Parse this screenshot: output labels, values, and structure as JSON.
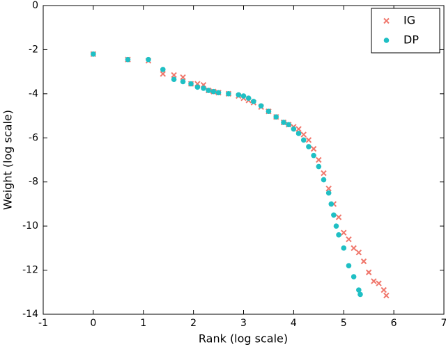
{
  "chart_data": {
    "type": "scatter",
    "xlabel": "Rank (log scale)",
    "ylabel": "Weight (log scale)",
    "xlim": [
      -1,
      7
    ],
    "ylim": [
      -14,
      0
    ],
    "xticks": [
      -1,
      0,
      1,
      2,
      3,
      4,
      5,
      6,
      7
    ],
    "yticks": [
      -14,
      -12,
      -10,
      -8,
      -6,
      -4,
      -2,
      0
    ],
    "legend": "upper right",
    "series": [
      {
        "name": "IG",
        "color": "#f0776c",
        "marker": "x",
        "x": [
          0,
          0.69,
          1.1,
          1.39,
          1.61,
          1.79,
          1.95,
          2.08,
          2.2,
          2.3,
          2.4,
          2.5,
          2.7,
          2.9,
          3.0,
          3.1,
          3.2,
          3.35,
          3.5,
          3.65,
          3.8,
          3.9,
          4.0,
          4.1,
          4.2,
          4.3,
          4.4,
          4.5,
          4.6,
          4.7,
          4.8,
          4.9,
          5.0,
          5.1,
          5.2,
          5.3,
          5.4,
          5.5,
          5.6,
          5.7,
          5.8,
          5.85
        ],
        "values": [
          -2.2,
          -2.45,
          -2.5,
          -3.1,
          -3.15,
          -3.25,
          -3.55,
          -3.55,
          -3.6,
          -3.85,
          -3.9,
          -3.95,
          -4.0,
          -4.1,
          -4.2,
          -4.3,
          -4.4,
          -4.6,
          -4.8,
          -5.05,
          -5.3,
          -5.4,
          -5.5,
          -5.6,
          -5.85,
          -6.1,
          -6.5,
          -7.0,
          -7.6,
          -8.3,
          -9.0,
          -9.6,
          -10.3,
          -10.6,
          -11.0,
          -11.2,
          -11.6,
          -12.1,
          -12.5,
          -12.6,
          -12.9,
          -13.15
        ]
      },
      {
        "name": "DP",
        "color": "#1fbfc4",
        "marker": "o",
        "x": [
          0,
          0.69,
          1.1,
          1.39,
          1.61,
          1.79,
          1.95,
          2.08,
          2.2,
          2.3,
          2.4,
          2.5,
          2.7,
          2.9,
          3.0,
          3.1,
          3.2,
          3.35,
          3.5,
          3.65,
          3.8,
          3.9,
          4.0,
          4.1,
          4.2,
          4.3,
          4.4,
          4.5,
          4.6,
          4.7,
          4.75,
          4.8,
          4.85,
          4.9,
          5.0,
          5.1,
          5.2,
          5.3,
          5.33
        ],
        "values": [
          -2.2,
          -2.45,
          -2.45,
          -2.9,
          -3.35,
          -3.45,
          -3.55,
          -3.7,
          -3.75,
          -3.85,
          -3.9,
          -3.95,
          -4.0,
          -4.05,
          -4.1,
          -4.2,
          -4.35,
          -4.55,
          -4.8,
          -5.05,
          -5.3,
          -5.4,
          -5.6,
          -5.8,
          -6.1,
          -6.4,
          -6.8,
          -7.3,
          -7.9,
          -8.5,
          -9.0,
          -9.5,
          -10.0,
          -10.4,
          -11.0,
          -11.8,
          -12.3,
          -12.9,
          -13.1
        ]
      }
    ]
  }
}
